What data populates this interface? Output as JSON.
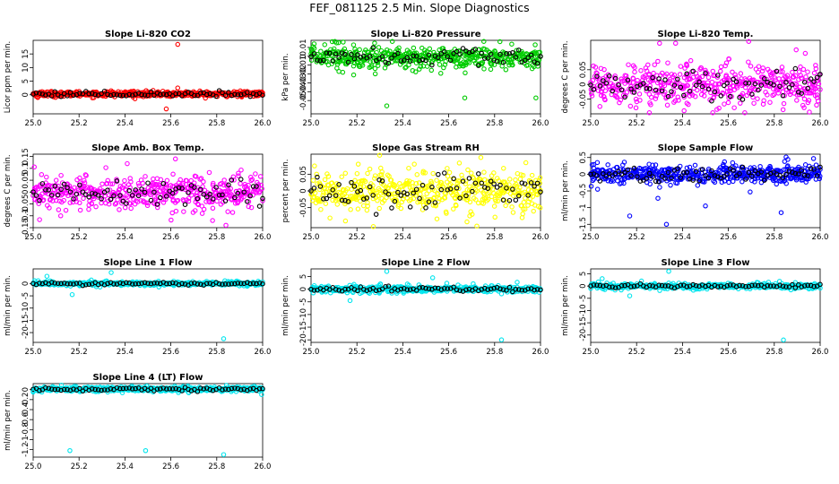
{
  "page": {
    "title": "FEF_081125  2.5 Min. Slope Diagnostics"
  },
  "chart_data": [
    {
      "type": "scatter",
      "title": "Slope Li-820 CO2",
      "xlabel": "",
      "ylabel": "Licor ppm per min.",
      "xlim": [
        25.0,
        26.0
      ],
      "ylim": [
        -7,
        20
      ],
      "xticks": [
        25.0,
        25.2,
        25.4,
        25.6,
        25.8,
        26.0
      ],
      "yticks": [
        0,
        5,
        10,
        15
      ],
      "color": "#ff0000",
      "center": 0.3,
      "spread": 0.5,
      "jitter": 0.4,
      "outliers": [
        [
          25.63,
          18.5
        ],
        [
          25.63,
          2.5
        ],
        [
          25.58,
          -5.2
        ],
        [
          25.02,
          -1.0
        ]
      ]
    },
    {
      "type": "scatter",
      "title": "Slope Li-820 Pressure",
      "xlabel": "",
      "ylabel": "kPa per min.",
      "xlim": [
        25.0,
        26.0
      ],
      "ylim": [
        -0.065,
        0.018
      ],
      "xticks": [
        25.0,
        25.2,
        25.4,
        25.6,
        25.8,
        26.0
      ],
      "yticks": [
        -0.05,
        -0.04,
        -0.03,
        -0.02,
        -0.01,
        0.0,
        0.01
      ],
      "color": "#00cc00",
      "center": -0.001,
      "spread": 0.005,
      "jitter": 0.009,
      "outliers": [
        [
          25.33,
          -0.056
        ],
        [
          25.67,
          -0.047
        ],
        [
          25.98,
          -0.047
        ],
        [
          25.14,
          0.016
        ]
      ]
    },
    {
      "type": "scatter",
      "title": "Slope Li-820 Temp.",
      "xlabel": "",
      "ylabel": "degrees C per min.",
      "xlim": [
        25.0,
        26.0
      ],
      "ylim": [
        -0.1,
        0.15
      ],
      "xticks": [
        25.0,
        25.2,
        25.4,
        25.6,
        25.8,
        26.0
      ],
      "yticks": [
        -0.05,
        0.0,
        0.05
      ],
      "color": "#ff00ff",
      "center": 0.0,
      "spread": 0.03,
      "jitter": 0.045,
      "outliers": [
        [
          25.3,
          0.14
        ],
        [
          25.37,
          0.14
        ],
        [
          25.04,
          -0.075
        ],
        [
          25.98,
          0.065
        ],
        [
          25.55,
          -0.085
        ]
      ]
    },
    {
      "type": "scatter",
      "title": "Slope Amb. Box Temp.",
      "xlabel": "",
      "ylabel": "degrees C per min.",
      "xlim": [
        25.0,
        26.0
      ],
      "ylim": [
        -0.15,
        0.16
      ],
      "xticks": [
        25.0,
        25.2,
        25.4,
        25.6,
        25.8,
        26.0
      ],
      "yticks": [
        -0.15,
        -0.1,
        -0.05,
        0.0,
        0.05,
        0.1,
        0.15
      ],
      "color": "#ff00ff",
      "center": 0.0,
      "spread": 0.03,
      "jitter": 0.05,
      "outliers": [
        [
          25.62,
          0.14
        ],
        [
          25.84,
          -0.14
        ],
        [
          25.41,
          0.12
        ],
        [
          25.12,
          -0.1
        ]
      ]
    },
    {
      "type": "scatter",
      "title": "Slope Gas Stream RH",
      "xlabel": "",
      "ylabel": "percent per min.",
      "xlim": [
        25.0,
        26.0
      ],
      "ylim": [
        -0.11,
        0.11
      ],
      "xticks": [
        25.0,
        25.2,
        25.4,
        25.6,
        25.8,
        26.0
      ],
      "yticks": [
        -0.05,
        0.0,
        0.05
      ],
      "color": "#ffff00",
      "center": 0.0,
      "spread": 0.025,
      "jitter": 0.04,
      "outliers": [
        [
          25.74,
          0.1
        ],
        [
          25.45,
          0.08
        ],
        [
          25.15,
          -0.09
        ],
        [
          25.92,
          -0.08
        ]
      ]
    },
    {
      "type": "scatter",
      "title": "Slope Sample Flow",
      "xlabel": "",
      "ylabel": "ml/min per min.",
      "xlim": [
        25.0,
        26.0
      ],
      "ylim": [
        -1.6,
        0.6
      ],
      "xticks": [
        25.0,
        25.2,
        25.4,
        25.6,
        25.8,
        26.0
      ],
      "yticks": [
        -1.5,
        -1.0,
        -0.5,
        0.0,
        0.5
      ],
      "color": "#0000ff",
      "center": 0.0,
      "spread": 0.12,
      "jitter": 0.2,
      "outliers": [
        [
          25.33,
          -1.5
        ],
        [
          25.83,
          -1.15
        ],
        [
          25.17,
          -1.25
        ],
        [
          25.5,
          -0.95
        ],
        [
          25.03,
          -0.45
        ]
      ]
    },
    {
      "type": "scatter",
      "title": "Slope Line 1 Flow",
      "xlabel": "",
      "ylabel": "ml/min per min.",
      "xlim": [
        25.0,
        26.0
      ],
      "ylim": [
        -24,
        6
      ],
      "xticks": [
        25.0,
        25.2,
        25.4,
        25.6,
        25.8,
        26.0
      ],
      "yticks": [
        -20,
        -15,
        -10,
        -5,
        0
      ],
      "color": "#00e5ee",
      "center": 0.0,
      "spread": 0.3,
      "jitter": 0.6,
      "outliers": [
        [
          25.83,
          -22.5
        ],
        [
          25.17,
          -4.5
        ],
        [
          25.06,
          3.0
        ],
        [
          25.34,
          4.5
        ]
      ]
    },
    {
      "type": "scatter",
      "title": "Slope Line 2 Flow",
      "xlabel": "",
      "ylabel": "ml/min per min.",
      "xlim": [
        25.0,
        26.0
      ],
      "ylim": [
        -21,
        8
      ],
      "xticks": [
        25.0,
        25.2,
        25.4,
        25.6,
        25.8,
        26.0
      ],
      "yticks": [
        -20,
        -15,
        -10,
        -5,
        0,
        5
      ],
      "color": "#00e5ee",
      "center": 0.0,
      "spread": 0.5,
      "jitter": 0.9,
      "outliers": [
        [
          25.83,
          -20.0
        ],
        [
          25.17,
          -4.5
        ],
        [
          25.33,
          7.0
        ],
        [
          25.53,
          4.5
        ]
      ]
    },
    {
      "type": "scatter",
      "title": "Slope Line 3 Flow",
      "xlabel": "",
      "ylabel": "ml/min per min.",
      "xlim": [
        25.0,
        26.0
      ],
      "ylim": [
        -23,
        7
      ],
      "xticks": [
        25.0,
        25.2,
        25.4,
        25.6,
        25.8,
        26.0
      ],
      "yticks": [
        -20,
        -15,
        -10,
        -5,
        0,
        5
      ],
      "color": "#00e5ee",
      "center": 0.0,
      "spread": 0.4,
      "jitter": 0.8,
      "outliers": [
        [
          25.84,
          -22.0
        ],
        [
          25.17,
          -4.0
        ],
        [
          25.34,
          6.0
        ],
        [
          25.05,
          3.0
        ]
      ]
    },
    {
      "type": "scatter",
      "title": "Slope Line 4 (LT) Flow",
      "xlabel": "",
      "ylabel": "ml/min per min.",
      "xlim": [
        25.0,
        26.0
      ],
      "ylim": [
        -1.35,
        0.12
      ],
      "xticks": [
        25.0,
        25.2,
        25.4,
        25.6,
        25.8,
        26.0
      ],
      "yticks": [
        -1.2,
        -1.0,
        -0.8,
        -0.6,
        -0.4,
        -0.2,
        0.0
      ],
      "color": "#00e5ee",
      "center": 0.01,
      "spread": 0.02,
      "jitter": 0.03,
      "outliers": [
        [
          25.16,
          -1.22
        ],
        [
          25.49,
          -1.22
        ],
        [
          25.83,
          -1.3
        ],
        [
          25.0,
          -0.05
        ]
      ]
    }
  ]
}
